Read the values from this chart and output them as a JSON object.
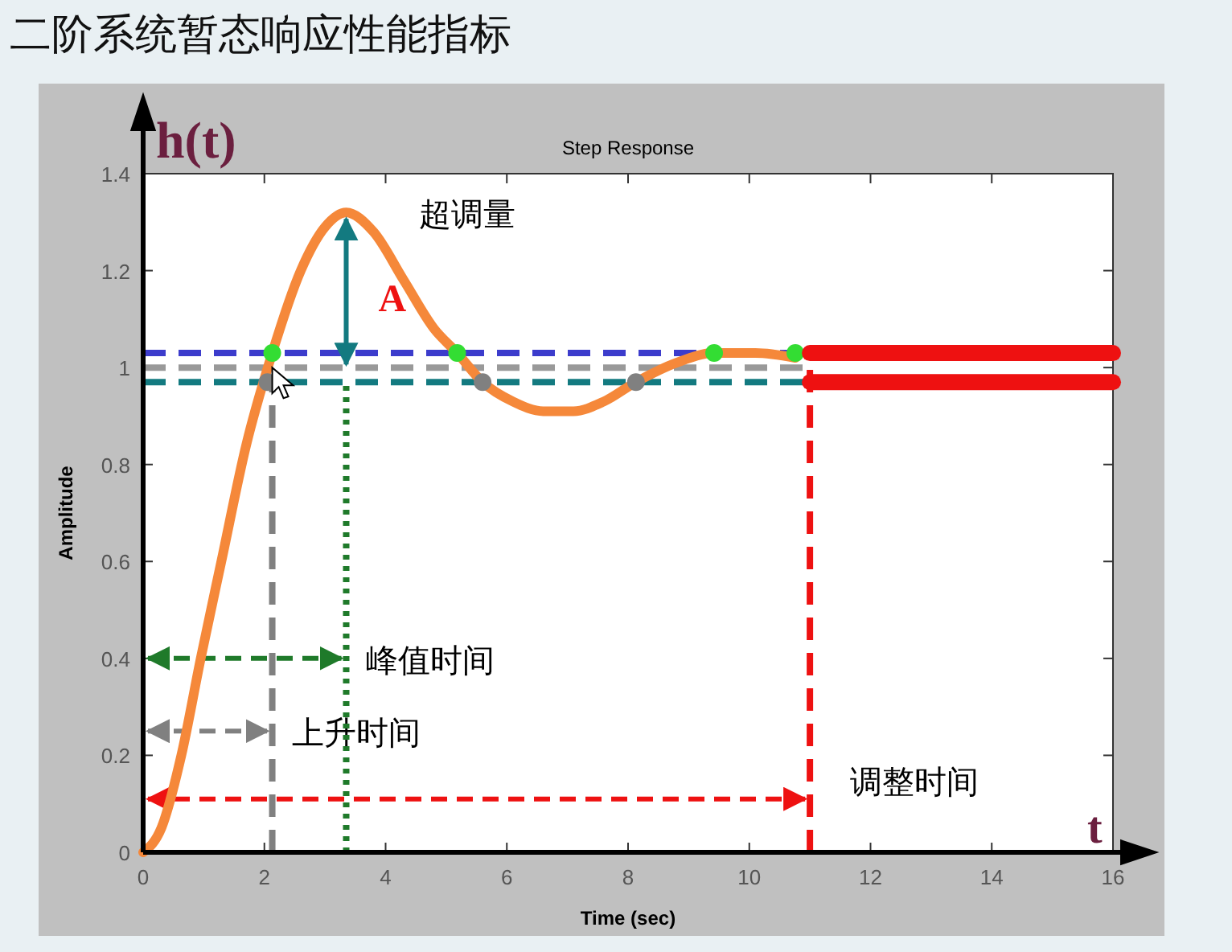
{
  "chart_data": {
    "type": "line",
    "title": "二阶系统暂态响应性能指标",
    "subtitle": "Step Response",
    "xlabel": "Time (sec)",
    "ylabel": "Amplitude",
    "xlim": [
      0,
      16
    ],
    "ylim": [
      0,
      1.4
    ],
    "xticks": [
      0,
      2,
      4,
      6,
      8,
      10,
      12,
      14,
      16
    ],
    "yticks": [
      0,
      0.2,
      0.4,
      0.6,
      0.8,
      1,
      1.2,
      1.4
    ],
    "grid": false,
    "series": [
      {
        "color": "#f5883a",
        "x": [
          0,
          0.3,
          0.63,
          0.95,
          1.29,
          1.7,
          2.13,
          2.6,
          3.0,
          3.35,
          3.8,
          4.3,
          4.8,
          5.18,
          5.6,
          6.1,
          6.6,
          7.1,
          7.6,
          8.13,
          8.8,
          9.42,
          10.1,
          10.76
        ],
        "values": [
          0,
          0.05,
          0.2,
          0.4,
          0.6,
          0.84,
          1.03,
          1.2,
          1.29,
          1.32,
          1.28,
          1.18,
          1.08,
          1.03,
          0.97,
          0.93,
          0.91,
          0.91,
          0.93,
          0.97,
          1.01,
          1.03,
          1.03,
          1.02
        ]
      },
      {
        "type": "scatter",
        "color": "#33dd33",
        "marker": "circle",
        "x": [
          2.13,
          5.18,
          9.42,
          10.76
        ],
        "values": [
          1.03,
          1.03,
          1.03,
          1.03
        ]
      },
      {
        "type": "scatter",
        "color": "#808080",
        "marker": "circle",
        "x": [
          2.05,
          5.6,
          8.13
        ],
        "values": [
          0.97,
          0.97,
          0.97
        ]
      },
      {
        "color": "#ee1111",
        "x": [
          11,
          16
        ],
        "values": [
          1.03,
          1.03
        ]
      },
      {
        "color": "#ee1111",
        "x": [
          11,
          16
        ],
        "values": [
          0.97,
          0.97
        ]
      }
    ],
    "ref_lines": [
      {
        "axis": "y",
        "value": 1.03,
        "color": "#3c3ccc",
        "line_style": "dashed"
      },
      {
        "axis": "y",
        "value": 1,
        "color": "#999999",
        "line_style": "dashed"
      },
      {
        "axis": "y",
        "value": 0.97,
        "color": "#137a80",
        "line_style": "dashed"
      },
      {
        "axis": "x",
        "value": 2.13,
        "label": "上升时间",
        "color": "#808080",
        "line_style": "dashed"
      },
      {
        "axis": "x",
        "value": 3.35,
        "label": "峰值时间",
        "color": "#1f7a2a",
        "line_style": "dotted"
      },
      {
        "axis": "x",
        "value": 11,
        "label": "调整时间",
        "color": "#ee1111",
        "line_style": "dashed"
      }
    ],
    "annotations": [
      "h(t)",
      "t",
      "A",
      {
        "text": "超调量",
        "x": 3.35,
        "y": 1.32
      }
    ]
  }
}
